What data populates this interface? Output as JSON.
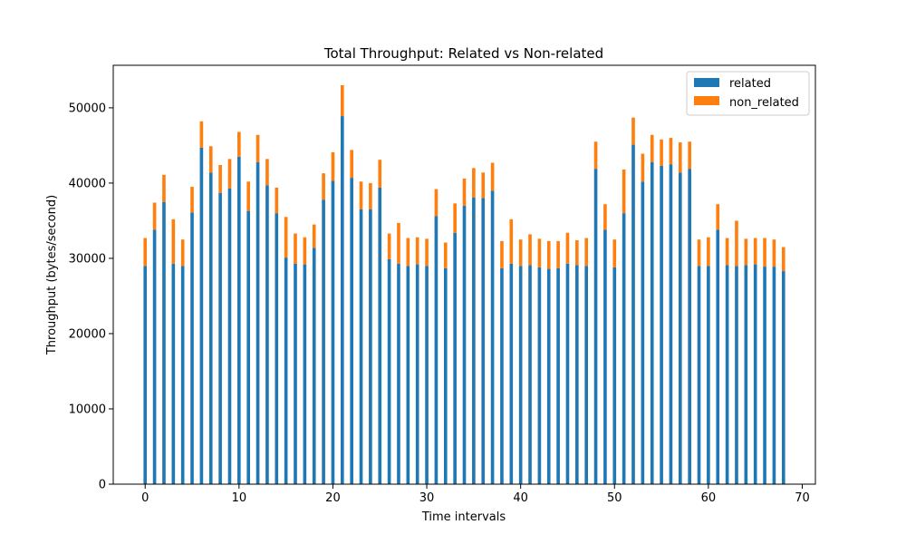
{
  "chart_data": {
    "type": "bar",
    "stacked": true,
    "title": "Total Throughput: Related vs Non-related",
    "xlabel": "Time intervals",
    "ylabel": "Throughput (bytes/second)",
    "xlim": [
      -3.4,
      71.4
    ],
    "ylim": [
      0,
      55650
    ],
    "xticks": [
      0,
      10,
      20,
      30,
      40,
      50,
      60,
      70
    ],
    "yticks": [
      0,
      10000,
      20000,
      30000,
      40000,
      50000
    ],
    "grid": false,
    "legend_position": "top-right",
    "x": [
      0,
      1,
      2,
      3,
      4,
      5,
      6,
      7,
      8,
      9,
      10,
      11,
      12,
      13,
      14,
      15,
      16,
      17,
      18,
      19,
      20,
      21,
      22,
      23,
      24,
      25,
      26,
      27,
      28,
      29,
      30,
      31,
      32,
      33,
      34,
      35,
      36,
      37,
      38,
      39,
      40,
      41,
      42,
      43,
      44,
      45,
      46,
      47,
      48,
      49,
      50,
      51,
      52,
      53,
      54,
      55,
      56,
      57,
      58,
      59,
      60,
      61,
      62,
      63,
      64,
      65,
      66,
      67,
      68
    ],
    "series": [
      {
        "name": "related",
        "color": "#1f77b4",
        "values": [
          29000,
          33800,
          37500,
          29300,
          29000,
          36100,
          44700,
          41400,
          38700,
          39300,
          43500,
          36300,
          42800,
          39700,
          36000,
          30100,
          29300,
          29200,
          31400,
          37800,
          40300,
          48900,
          40700,
          36500,
          36500,
          39400,
          29900,
          29300,
          29000,
          29200,
          29000,
          35600,
          28700,
          33400,
          37000,
          38100,
          38000,
          39000,
          28700,
          29300,
          29000,
          29100,
          28800,
          28600,
          28700,
          29300,
          29100,
          29000,
          41900,
          33800,
          28800,
          36000,
          45100,
          40200,
          42800,
          42300,
          42500,
          41400,
          41900,
          29000,
          29000,
          33800,
          29100,
          29000,
          29100,
          29200,
          28900,
          28900,
          28300
        ]
      },
      {
        "name": "non_related",
        "color": "#ff7f0e",
        "values": [
          3700,
          3600,
          3600,
          5900,
          3500,
          3400,
          3500,
          3500,
          3700,
          3900,
          3300,
          3900,
          3600,
          3500,
          3400,
          5400,
          4000,
          3600,
          3100,
          3500,
          3800,
          4100,
          3700,
          3700,
          3500,
          3700,
          3400,
          5400,
          3700,
          3600,
          3600,
          3600,
          3400,
          3900,
          3600,
          3900,
          3400,
          3700,
          3600,
          5900,
          3500,
          4100,
          3800,
          3700,
          3600,
          4100,
          3300,
          3700,
          3600,
          3400,
          3700,
          5800,
          3600,
          3700,
          3600,
          3500,
          3500,
          4000,
          3600,
          3500,
          3800,
          3400,
          3600,
          6000,
          3500,
          3500,
          3800,
          3600,
          3200
        ]
      }
    ]
  }
}
